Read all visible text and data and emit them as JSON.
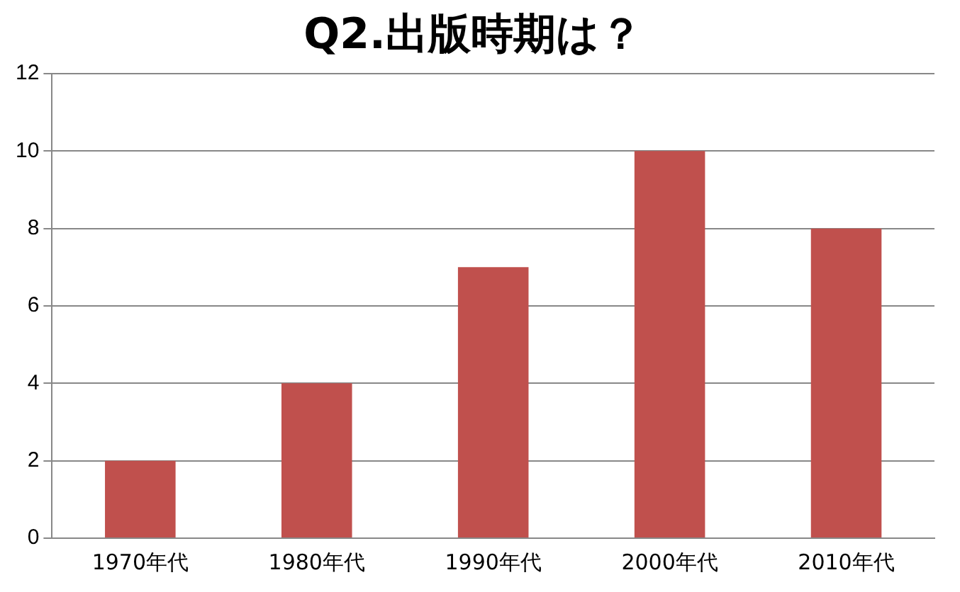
{
  "chart_data": {
    "type": "bar",
    "title": "Q2.出版時期は？",
    "categories": [
      "1970年代",
      "1980年代",
      "1990年代",
      "2000年代",
      "2010年代"
    ],
    "values": [
      2,
      4,
      7,
      10,
      8
    ],
    "color": "#c0504d",
    "ylim": [
      0,
      12
    ],
    "yticks": [
      0,
      2,
      4,
      6,
      8,
      10,
      12
    ],
    "grid": "y",
    "legend": false
  }
}
